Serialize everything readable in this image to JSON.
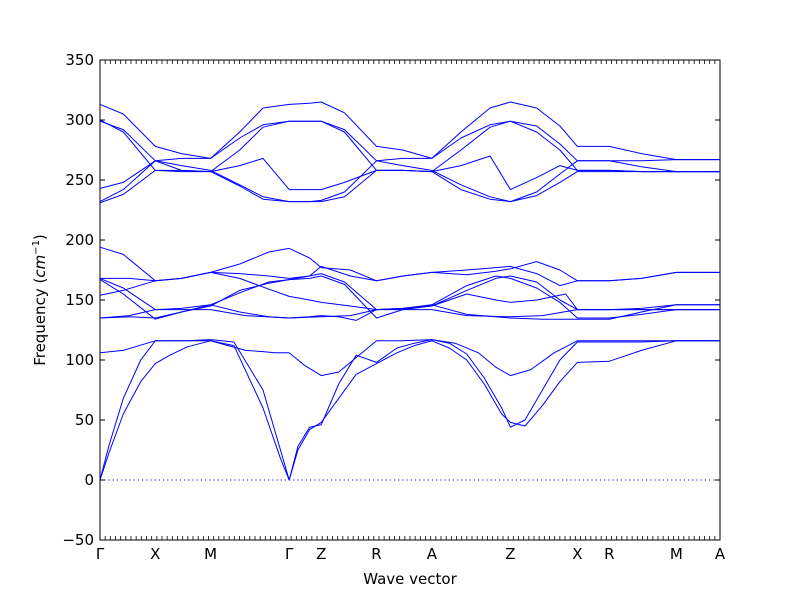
{
  "chart_data": {
    "type": "line",
    "xlabel": "Wave vector",
    "ylabel_prefix": "Frequency (",
    "ylabel_unit_base": "cm",
    "ylabel_unit_exp": "−1",
    "ylabel_suffix": ")",
    "ylim": [
      -50,
      350
    ],
    "yticks": [
      -50,
      0,
      50,
      100,
      150,
      200,
      250,
      300,
      350
    ],
    "xlim": [
      0,
      10.65
    ],
    "hline": {
      "y": 0,
      "style": "dotted"
    },
    "xticks": [
      {
        "label": "Γ",
        "x": 0
      },
      {
        "label": "X",
        "x": 0.95
      },
      {
        "label": "M",
        "x": 1.9
      },
      {
        "label": "Γ",
        "x": 3.25
      },
      {
        "label": "Z",
        "x": 3.8
      },
      {
        "label": "R",
        "x": 4.75
      },
      {
        "label": "A",
        "x": 5.7
      },
      {
        "label": "Z",
        "x": 7.05
      },
      {
        "label": "X",
        "x": 8.2
      },
      {
        "label": "R",
        "x": 8.75
      },
      {
        "label": "M",
        "x": 9.9
      },
      {
        "label": "A",
        "x": 10.65
      }
    ],
    "series": [
      {
        "x": [
          0,
          0.15,
          0.4,
          0.7,
          0.95,
          1.2,
          1.5,
          1.9,
          2.3,
          2.8,
          3.1,
          3.25,
          3.4,
          3.6,
          3.8,
          4.1,
          4.4,
          4.75,
          5.1,
          5.4,
          5.7,
          6.0,
          6.3,
          6.6,
          6.9,
          7.05,
          7.3,
          7.6,
          7.9,
          8.2,
          8.75,
          9.3,
          9.9,
          10.3,
          10.65
        ],
        "y": [
          0,
          22,
          55,
          82,
          97,
          104,
          111,
          116,
          112,
          60,
          18,
          0,
          25,
          42,
          48,
          68,
          88,
          97,
          106,
          112,
          116,
          110,
          100,
          80,
          55,
          48,
          45,
          62,
          82,
          98,
          99,
          108,
          116,
          116,
          116
        ]
      },
      {
        "x": [
          0,
          0.15,
          0.4,
          0.7,
          0.95,
          1.2,
          1.5,
          1.9,
          2.3,
          2.8,
          3.1,
          3.25,
          3.4,
          3.6,
          3.8,
          4.1,
          4.4,
          4.75,
          5.1,
          5.4,
          5.7,
          6.0,
          6.3,
          6.6,
          6.9,
          7.05,
          7.3,
          7.6,
          7.9,
          8.2,
          8.75,
          9.3,
          9.9,
          10.3,
          10.65
        ],
        "y": [
          0,
          28,
          68,
          100,
          116,
          116,
          116,
          117,
          115,
          75,
          25,
          0,
          28,
          44,
          46,
          80,
          104,
          98,
          110,
          114,
          117,
          114,
          105,
          85,
          60,
          44,
          50,
          75,
          100,
          115,
          115,
          115,
          116,
          116,
          116
        ]
      },
      {
        "x": [
          0,
          0.4,
          0.95,
          1.2,
          1.5,
          1.9,
          2.2,
          2.5,
          2.8,
          3.0,
          3.25
        ],
        "y": [
          106,
          108,
          116,
          116,
          116,
          116,
          112,
          108,
          107,
          106,
          106
        ]
      },
      {
        "x": [
          3.25,
          3.5,
          3.8,
          4.1,
          4.4,
          4.75,
          5.2,
          5.7,
          6.1,
          6.5,
          6.8,
          7.05,
          7.4,
          7.8,
          8.2,
          8.75,
          9.3,
          9.9,
          10.65
        ],
        "y": [
          106,
          96,
          87,
          90,
          102,
          116,
          116,
          117,
          114,
          106,
          94,
          87,
          92,
          106,
          116,
          116,
          116,
          116,
          116
        ]
      },
      {
        "x": [
          0,
          0.5,
          0.95,
          1.4,
          1.9,
          2.5,
          3.25,
          3.8,
          4.3,
          4.75,
          5.2,
          5.7,
          6.3,
          7.05,
          7.6,
          8.2,
          8.75,
          9.3,
          9.9,
          10.65
        ],
        "y": [
          135,
          137,
          142,
          142,
          142,
          137,
          135,
          136,
          137,
          142,
          142,
          142,
          137,
          136,
          137,
          142,
          142,
          142,
          142,
          142
        ]
      },
      {
        "x": [
          0,
          0.5,
          0.95,
          1.4,
          1.9,
          2.4,
          2.9,
          3.25,
          3.6,
          3.8,
          4.1,
          4.4,
          4.75,
          5.3,
          5.7,
          6.3,
          7.05,
          7.6,
          8.2,
          8.75,
          9.3,
          9.9,
          10.65
        ],
        "y": [
          135,
          136,
          135,
          140,
          146,
          140,
          136,
          135,
          136,
          137,
          136,
          133,
          142,
          143,
          146,
          138,
          135,
          134,
          134,
          134,
          140,
          146,
          146
        ]
      },
      {
        "x": [
          0,
          0.4,
          0.95,
          1.4,
          1.9,
          2.4,
          2.9,
          3.25,
          3.6,
          3.8,
          4.2,
          4.75,
          5.2,
          5.7,
          6.3,
          6.8,
          7.05,
          7.5,
          7.9,
          8.2,
          8.75,
          9.3,
          9.9,
          10.65
        ],
        "y": [
          168,
          160,
          142,
          143,
          146,
          156,
          165,
          167,
          168,
          170,
          163,
          135,
          142,
          145,
          158,
          168,
          170,
          165,
          150,
          142,
          142,
          143,
          146,
          146
        ]
      },
      {
        "x": [
          0,
          0.4,
          0.95,
          1.4,
          1.9,
          2.4,
          2.9,
          3.25,
          3.6,
          3.8,
          4.2,
          4.75,
          5.2,
          5.7,
          6.3,
          6.8,
          7.05,
          7.5,
          7.9,
          8.2,
          8.75,
          9.3,
          9.9,
          10.65
        ],
        "y": [
          167,
          155,
          134,
          140,
          145,
          158,
          164,
          167,
          170,
          172,
          165,
          142,
          143,
          146,
          162,
          170,
          168,
          160,
          148,
          135,
          135,
          138,
          142,
          142
        ]
      },
      {
        "x": [
          0,
          0.4,
          0.95,
          1.4,
          1.9,
          2.4,
          2.9,
          3.25,
          3.6,
          3.8,
          4.3,
          4.75,
          5.2,
          5.7,
          6.3,
          6.8,
          7.05,
          7.5,
          8.0,
          8.2,
          8.75,
          9.3,
          9.9,
          10.65
        ],
        "y": [
          154,
          158,
          166,
          168,
          173,
          168,
          159,
          153,
          150,
          148,
          145,
          142,
          143,
          145,
          155,
          150,
          148,
          150,
          155,
          142,
          142,
          142,
          142,
          142
        ]
      },
      {
        "x": [
          0,
          0.5,
          0.95,
          1.4,
          1.9,
          2.4,
          2.9,
          3.25,
          3.6,
          3.8,
          4.3,
          4.75,
          5.2,
          5.7,
          6.3,
          6.8,
          7.05,
          7.5,
          7.9,
          8.2,
          8.75,
          9.3,
          9.9,
          10.65
        ],
        "y": [
          168,
          168,
          166,
          168,
          173,
          172,
          170,
          168,
          170,
          178,
          170,
          166,
          170,
          173,
          171,
          174,
          176,
          182,
          175,
          166,
          166,
          168,
          173,
          173
        ]
      },
      {
        "x": [
          0,
          0.4,
          0.95,
          1.4,
          1.9,
          2.4,
          2.9,
          3.25,
          3.6,
          3.8,
          4.3,
          4.75,
          5.2,
          5.7,
          6.3,
          6.8,
          7.05,
          7.5,
          7.9,
          8.2,
          8.75,
          9.3,
          9.9,
          10.65
        ],
        "y": [
          194,
          188,
          166,
          168,
          173,
          180,
          190,
          193,
          185,
          177,
          175,
          166,
          170,
          173,
          175,
          177,
          178,
          172,
          162,
          166,
          166,
          168,
          173,
          173
        ]
      },
      {
        "x": [
          0,
          0.4,
          0.95,
          1.4,
          1.9,
          2.4,
          2.8,
          3.25,
          3.6,
          3.8,
          4.2,
          4.75,
          5.2,
          5.7,
          6.2,
          6.7,
          7.05,
          7.5,
          7.9,
          8.2,
          8.75,
          9.3,
          9.9,
          10.65
        ],
        "y": [
          231,
          238,
          258,
          258,
          257,
          245,
          234,
          232,
          232,
          232,
          236,
          258,
          258,
          257,
          242,
          234,
          232,
          237,
          248,
          257,
          257,
          257,
          257,
          257
        ]
      },
      {
        "x": [
          0,
          0.4,
          0.95,
          1.4,
          1.9,
          2.4,
          2.8,
          3.25,
          3.6,
          3.8,
          4.2,
          4.75,
          5.2,
          5.7,
          6.2,
          6.7,
          7.05,
          7.5,
          7.9,
          8.2,
          8.75,
          9.3,
          9.9,
          10.65
        ],
        "y": [
          232,
          242,
          266,
          262,
          258,
          246,
          236,
          232,
          232,
          233,
          240,
          266,
          262,
          258,
          246,
          236,
          232,
          240,
          255,
          266,
          266,
          261,
          257,
          257
        ]
      },
      {
        "x": [
          0,
          0.4,
          0.95,
          1.4,
          1.9,
          2.4,
          2.8,
          3.25,
          3.6,
          3.8,
          4.2,
          4.75,
          5.2,
          5.7,
          6.2,
          6.7,
          7.05,
          7.5,
          7.9,
          8.2,
          8.75,
          9.3,
          9.9,
          10.65
        ],
        "y": [
          243,
          248,
          266,
          268,
          268,
          285,
          296,
          299,
          299,
          299,
          292,
          266,
          268,
          268,
          285,
          296,
          299,
          295,
          280,
          266,
          266,
          266,
          267,
          267
        ]
      },
      {
        "x": [
          0,
          0.4,
          0.95,
          1.4,
          1.9,
          2.4,
          2.8,
          3.25,
          3.6,
          3.8,
          4.2,
          4.75,
          5.2,
          5.7,
          6.2,
          6.7,
          7.05,
          7.5,
          7.9,
          8.2,
          8.75,
          9.3,
          9.9,
          10.65
        ],
        "y": [
          299,
          292,
          266,
          258,
          257,
          262,
          268,
          242,
          242,
          242,
          248,
          258,
          258,
          257,
          262,
          270,
          242,
          252,
          262,
          258,
          258,
          257,
          257,
          257
        ]
      },
      {
        "x": [
          0,
          0.4,
          0.95,
          1.4,
          1.9,
          2.4,
          2.8,
          3.25,
          3.6,
          3.8,
          4.2,
          4.75,
          5.2,
          5.7,
          6.2,
          6.7,
          7.05,
          7.5,
          7.9,
          8.2,
          8.75,
          9.3,
          9.9,
          10.65
        ],
        "y": [
          300,
          290,
          258,
          257,
          257,
          275,
          294,
          299,
          299,
          299,
          290,
          258,
          258,
          257,
          275,
          294,
          299,
          290,
          275,
          258,
          258,
          257,
          257,
          257
        ]
      },
      {
        "x": [
          0,
          0.4,
          0.95,
          1.4,
          1.9,
          2.4,
          2.8,
          3.25,
          3.6,
          3.8,
          4.2,
          4.75,
          5.2,
          5.7,
          6.2,
          6.7,
          7.05,
          7.5,
          7.9,
          8.2,
          8.75,
          9.3,
          9.9,
          10.65
        ],
        "y": [
          313,
          305,
          278,
          272,
          268,
          290,
          310,
          313,
          314,
          315,
          306,
          278,
          275,
          268,
          290,
          310,
          315,
          310,
          295,
          278,
          278,
          272,
          267,
          267
        ]
      }
    ]
  }
}
